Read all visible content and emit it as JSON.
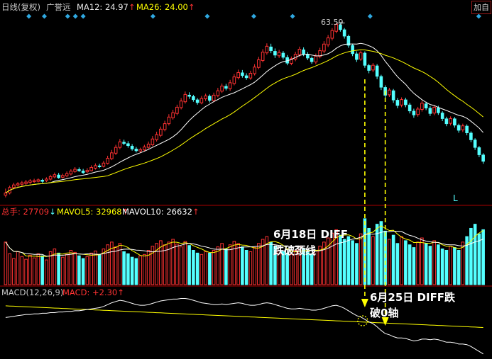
{
  "header": {
    "title": "日线(复权)",
    "stock": "广誉远",
    "ma12_label": "MA12: 24.97",
    "ma26_label": "MA26: 24.00",
    "button": "加自"
  },
  "volume_header": {
    "total_label": "总手: 27709",
    "mavol5_label": "MAVOL5: 32968",
    "mavol10_label": "MAVOL10: 26632"
  },
  "macd_header": {
    "name": "MACD(12,26,9)",
    "value_label": "MACD: +2.30"
  },
  "annotations": {
    "high_price": "63.59",
    "signal_1_line1": "6月18日 DIFF",
    "signal_1_line2": "跌破颈线",
    "signal_2_line1": "6月25日 DIFF跌",
    "signal_2_line2": "破0轴",
    "marker_L": "L"
  },
  "colors": {
    "background": "#000000",
    "up": "#ff3232",
    "down": "#54ffff",
    "ma12": "#ffffff",
    "ma26": "#ffff00",
    "annotation_arrow": "#ffff00",
    "panel_divider": "#aa0000"
  },
  "chart_data": {
    "type": "candlestick",
    "price_high_marked": 63.59,
    "ylim_price": [
      14,
      66
    ],
    "ylim_volume": [
      0,
      100
    ],
    "ylim_macd": [
      -6,
      4
    ],
    "candles": [
      [
        17.0,
        16.4,
        18.2,
        15.8
      ],
      [
        18.5,
        17.0,
        19.0,
        16.6
      ],
      [
        19.2,
        18.5,
        19.8,
        18.0
      ],
      [
        19.5,
        19.2,
        20.0,
        18.7
      ],
      [
        19.8,
        19.4,
        20.3,
        19.0
      ],
      [
        20.0,
        19.6,
        20.6,
        19.2
      ],
      [
        20.3,
        19.9,
        20.8,
        19.5
      ],
      [
        20.4,
        20.1,
        20.9,
        19.7
      ],
      [
        20.6,
        20.2,
        21.0,
        19.9
      ],
      [
        20.2,
        20.5,
        20.9,
        19.8
      ],
      [
        20.8,
        20.4,
        21.3,
        20.0
      ],
      [
        21.5,
        20.8,
        22.0,
        20.4
      ],
      [
        22.0,
        21.4,
        22.6,
        21.0
      ],
      [
        21.2,
        21.9,
        22.5,
        20.9
      ],
      [
        21.8,
        21.3,
        22.3,
        21.0
      ],
      [
        22.3,
        21.7,
        22.9,
        21.3
      ],
      [
        23.0,
        22.2,
        23.5,
        21.8
      ],
      [
        23.5,
        22.9,
        24.1,
        22.5
      ],
      [
        23.1,
        23.4,
        24.0,
        22.8
      ],
      [
        22.6,
        23.0,
        23.6,
        22.2
      ],
      [
        23.2,
        22.8,
        23.8,
        22.4
      ],
      [
        24.0,
        23.1,
        24.6,
        22.9
      ],
      [
        24.5,
        23.8,
        25.1,
        23.4
      ],
      [
        24.2,
        24.4,
        25.0,
        23.8
      ],
      [
        25.2,
        24.3,
        25.8,
        24.0
      ],
      [
        26.5,
        25.1,
        27.2,
        24.8
      ],
      [
        28.0,
        26.4,
        28.8,
        26.0
      ],
      [
        29.5,
        27.9,
        30.2,
        27.4
      ],
      [
        31.0,
        29.5,
        31.8,
        29.0
      ],
      [
        30.6,
        30.9,
        31.6,
        30.1
      ],
      [
        30.0,
        30.5,
        31.2,
        29.4
      ],
      [
        29.1,
        29.8,
        30.4,
        28.6
      ],
      [
        28.6,
        29.0,
        29.6,
        28.1
      ],
      [
        28.9,
        28.5,
        29.4,
        28.0
      ],
      [
        29.6,
        28.8,
        30.2,
        28.4
      ],
      [
        30.4,
        29.5,
        31.1,
        29.1
      ],
      [
        31.8,
        30.2,
        32.6,
        29.8
      ],
      [
        33.0,
        31.6,
        33.8,
        31.1
      ],
      [
        34.5,
        32.8,
        35.2,
        32.3
      ],
      [
        36.0,
        34.4,
        36.8,
        33.9
      ],
      [
        37.8,
        36.0,
        38.6,
        35.5
      ],
      [
        39.0,
        37.6,
        39.8,
        37.1
      ],
      [
        40.5,
        38.8,
        41.2,
        38.3
      ],
      [
        42.2,
        40.4,
        43.0,
        39.9
      ],
      [
        44.0,
        42.0,
        44.8,
        41.5
      ],
      [
        43.5,
        43.8,
        44.6,
        42.8
      ],
      [
        42.6,
        43.4,
        43.9,
        42.0
      ],
      [
        41.8,
        42.5,
        43.0,
        41.2
      ],
      [
        42.9,
        41.7,
        43.6,
        41.3
      ],
      [
        43.6,
        42.8,
        44.2,
        42.2
      ],
      [
        42.4,
        43.5,
        44.0,
        41.8
      ],
      [
        43.8,
        42.3,
        44.5,
        41.9
      ],
      [
        45.0,
        43.7,
        45.8,
        43.2
      ],
      [
        46.3,
        44.9,
        47.0,
        44.4
      ],
      [
        45.7,
        46.2,
        46.9,
        45.1
      ],
      [
        47.2,
        45.6,
        48.0,
        45.0
      ],
      [
        48.8,
        47.0,
        49.6,
        46.5
      ],
      [
        50.0,
        48.6,
        50.8,
        48.1
      ],
      [
        49.2,
        49.9,
        50.7,
        48.6
      ],
      [
        48.6,
        49.1,
        49.8,
        48.0
      ],
      [
        49.8,
        48.5,
        50.5,
        48.0
      ],
      [
        51.5,
        49.7,
        52.3,
        49.2
      ],
      [
        53.5,
        51.4,
        54.3,
        50.9
      ],
      [
        55.6,
        53.3,
        56.4,
        52.8
      ],
      [
        57.2,
        55.4,
        58.0,
        54.9
      ],
      [
        56.0,
        57.0,
        57.9,
        55.3
      ],
      [
        54.8,
        55.8,
        56.6,
        54.0
      ],
      [
        55.5,
        54.6,
        56.2,
        54.0
      ],
      [
        54.2,
        55.3,
        55.9,
        53.6
      ],
      [
        52.6,
        54.1,
        54.8,
        52.0
      ],
      [
        53.8,
        52.5,
        54.4,
        52.0
      ],
      [
        55.0,
        53.7,
        55.7,
        53.1
      ],
      [
        56.4,
        54.9,
        57.1,
        54.3
      ],
      [
        55.1,
        56.2,
        56.9,
        54.5
      ],
      [
        54.0,
        55.0,
        55.6,
        53.4
      ],
      [
        53.0,
        53.9,
        54.4,
        52.4
      ],
      [
        54.5,
        52.9,
        55.2,
        52.3
      ],
      [
        56.0,
        54.4,
        56.8,
        53.9
      ],
      [
        57.8,
        55.9,
        58.6,
        55.3
      ],
      [
        59.5,
        57.6,
        60.3,
        57.0
      ],
      [
        61.5,
        59.4,
        62.2,
        58.8
      ],
      [
        63.2,
        61.3,
        63.59,
        60.8
      ],
      [
        61.8,
        63.0,
        63.5,
        61.2
      ],
      [
        60.0,
        61.7,
        62.2,
        59.3
      ],
      [
        57.5,
        59.9,
        60.4,
        56.8
      ],
      [
        55.2,
        57.4,
        57.9,
        54.5
      ],
      [
        53.6,
        55.1,
        55.8,
        52.9
      ],
      [
        55.4,
        53.7,
        56.0,
        53.2
      ],
      [
        52.0,
        55.3,
        55.8,
        51.3
      ],
      [
        50.6,
        51.9,
        52.4,
        49.8
      ],
      [
        52.0,
        50.7,
        52.6,
        50.1
      ],
      [
        49.0,
        51.8,
        52.3,
        48.2
      ],
      [
        46.0,
        48.9,
        49.4,
        45.2
      ],
      [
        43.8,
        45.9,
        46.5,
        43.0
      ],
      [
        45.2,
        43.9,
        45.8,
        43.3
      ],
      [
        42.5,
        45.0,
        45.5,
        41.7
      ],
      [
        41.0,
        42.4,
        43.0,
        40.2
      ],
      [
        42.6,
        41.1,
        43.2,
        40.5
      ],
      [
        41.2,
        42.5,
        43.1,
        40.5
      ],
      [
        39.5,
        41.1,
        41.7,
        38.8
      ],
      [
        38.4,
        39.4,
        40.1,
        37.6
      ],
      [
        40.0,
        38.5,
        40.6,
        37.9
      ],
      [
        41.6,
        39.9,
        42.3,
        39.3
      ],
      [
        40.3,
        41.4,
        42.0,
        39.7
      ],
      [
        38.8,
        40.2,
        40.8,
        38.1
      ],
      [
        40.5,
        38.9,
        41.1,
        38.3
      ],
      [
        39.0,
        40.3,
        40.9,
        38.4
      ],
      [
        37.4,
        38.9,
        39.4,
        36.7
      ],
      [
        36.0,
        37.3,
        37.9,
        35.3
      ],
      [
        37.4,
        36.1,
        38.0,
        35.5
      ],
      [
        35.6,
        37.3,
        37.8,
        34.9
      ],
      [
        34.2,
        35.5,
        36.0,
        33.5
      ],
      [
        35.4,
        34.3,
        36.0,
        33.7
      ],
      [
        33.5,
        35.3,
        35.8,
        32.8
      ],
      [
        31.6,
        33.4,
        33.9,
        30.9
      ],
      [
        29.5,
        31.5,
        32.0,
        28.8
      ],
      [
        27.5,
        29.4,
        29.9,
        26.8
      ],
      [
        25.7,
        27.4,
        27.9,
        25.0
      ]
    ],
    "volume": [
      62,
      45,
      38,
      48,
      41,
      37,
      43,
      39,
      45,
      42,
      36,
      48,
      52,
      46,
      40,
      44,
      50,
      47,
      42,
      38,
      41,
      46,
      49,
      44,
      52,
      58,
      62,
      55,
      60,
      48,
      45,
      40,
      38,
      42,
      44,
      50,
      56,
      60,
      64,
      58,
      62,
      66,
      59,
      55,
      63,
      57,
      50,
      46,
      44,
      48,
      46,
      50,
      55,
      60,
      52,
      58,
      63,
      60,
      55,
      50,
      48,
      54,
      60,
      66,
      70,
      62,
      56,
      50,
      48,
      46,
      44,
      50,
      55,
      52,
      48,
      45,
      50,
      56,
      62,
      68,
      75,
      80,
      72,
      66,
      70,
      64,
      60,
      74,
      96,
      82,
      70,
      88,
      92,
      78,
      66,
      72,
      60,
      70,
      64,
      58,
      54,
      62,
      68,
      60,
      56,
      64,
      58,
      52,
      50,
      56,
      54,
      50,
      62,
      70,
      82,
      88,
      74,
      80
    ],
    "diff_line": [
      0.5,
      0.6,
      0.7,
      0.8,
      0.9,
      1.0,
      1.0,
      1.1,
      1.1,
      1.2,
      1.2,
      1.3,
      1.3,
      1.4,
      1.4,
      1.5,
      1.5,
      1.6,
      1.6,
      1.7,
      1.8,
      1.9,
      2.0,
      2.1,
      2.3,
      2.6,
      2.9,
      3.1,
      3.3,
      3.2,
      3.0,
      2.8,
      2.6,
      2.5,
      2.5,
      2.6,
      2.8,
      3.0,
      3.2,
      3.3,
      3.4,
      3.5,
      3.5,
      3.6,
      3.6,
      3.5,
      3.3,
      3.1,
      2.9,
      2.8,
      2.7,
      2.6,
      2.6,
      2.7,
      2.6,
      2.7,
      2.8,
      2.9,
      2.8,
      2.6,
      2.5,
      2.5,
      2.6,
      2.8,
      2.9,
      2.8,
      2.6,
      2.4,
      2.2,
      2.0,
      1.9,
      1.9,
      2.0,
      1.9,
      1.8,
      1.7,
      1.7,
      1.8,
      2.0,
      2.2,
      2.4,
      2.5,
      2.3,
      2.0,
      1.6,
      1.2,
      0.8,
      0.6,
      0.2,
      -0.2,
      -0.5,
      -1.0,
      -1.6,
      -2.1,
      -2.3,
      -2.6,
      -2.8,
      -2.8,
      -2.9,
      -3.1,
      -3.3,
      -3.2,
      -3.0,
      -3.0,
      -3.1,
      -3.0,
      -3.1,
      -3.3,
      -3.5,
      -3.5,
      -3.6,
      -3.8,
      -3.8,
      -3.9,
      -4.2,
      -4.6,
      -5.0,
      -5.4
    ],
    "dea_line": [
      2.4,
      2.37,
      2.34,
      2.31,
      2.28,
      2.25,
      2.22,
      2.19,
      2.16,
      2.13,
      2.1,
      2.07,
      2.04,
      2.01,
      1.98,
      1.95,
      1.92,
      1.89,
      1.86,
      1.83,
      1.8,
      1.77,
      1.74,
      1.71,
      1.68,
      1.65,
      1.62,
      1.59,
      1.56,
      1.53,
      1.5,
      1.47,
      1.44,
      1.41,
      1.38,
      1.35,
      1.32,
      1.29,
      1.26,
      1.23,
      1.2,
      1.17,
      1.14,
      1.11,
      1.08,
      1.05,
      1.02,
      0.99,
      0.96,
      0.93,
      0.9,
      0.87,
      0.84,
      0.81,
      0.78,
      0.75,
      0.72,
      0.69,
      0.66,
      0.63,
      0.6,
      0.57,
      0.54,
      0.51,
      0.48,
      0.45,
      0.42,
      0.39,
      0.36,
      0.33,
      0.3,
      0.27,
      0.24,
      0.21,
      0.18,
      0.15,
      0.12,
      0.09,
      0.06,
      0.03,
      0.0,
      -0.03,
      -0.06,
      -0.09,
      -0.12,
      -0.15,
      -0.18,
      -0.21,
      -0.24,
      -0.27,
      -0.3,
      -0.33,
      -0.36,
      -0.39,
      -0.42,
      -0.45,
      -0.48,
      -0.51,
      -0.54,
      -0.57,
      -0.6,
      -0.63,
      -0.66,
      -0.69,
      -0.72,
      -0.75,
      -0.78,
      -0.81,
      -0.84,
      -0.87,
      -0.9,
      -0.93,
      -0.96,
      -0.99,
      -1.02,
      -1.05,
      -1.08,
      -1.11
    ],
    "signal_marker_days": [
      3,
      5,
      8,
      9,
      10,
      19,
      26,
      32,
      37,
      47,
      61
    ],
    "signal_1_index": 88,
    "signal_2_index": 93
  }
}
